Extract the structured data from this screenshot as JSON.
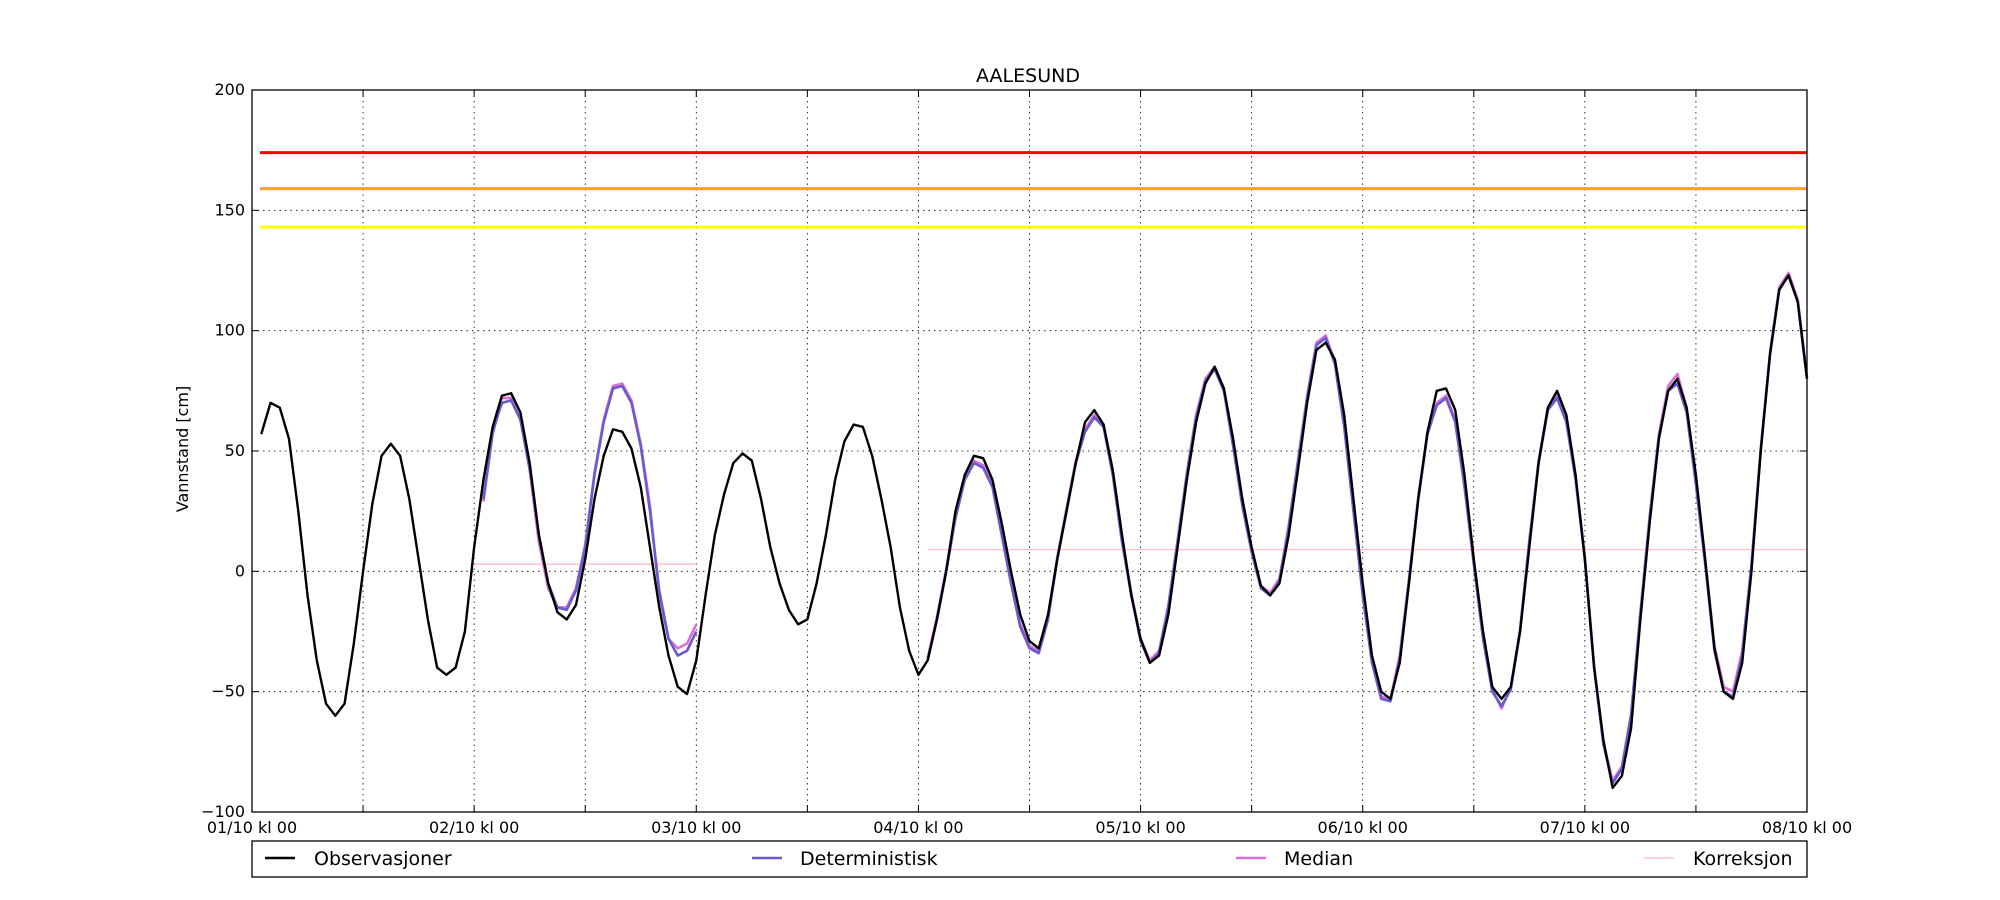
{
  "chart_data": {
    "type": "line",
    "title": "AALESUND",
    "xlabel": "",
    "ylabel": "Vannstand [cm]",
    "ylim": [
      -100,
      200
    ],
    "xlim_hours": [
      0,
      168
    ],
    "x_ticks": [
      "01/10 kl 00",
      "02/10 kl 00",
      "03/10 kl 00",
      "04/10 kl 00",
      "05/10 kl 00",
      "06/10 kl 00",
      "07/10 kl 00",
      "08/10 kl 00"
    ],
    "y_ticks": [
      -100,
      -50,
      0,
      50,
      100,
      150,
      200
    ],
    "grid": true,
    "grid_style": "dotted",
    "legend_position": "below",
    "threshold_lines": [
      {
        "value": 174,
        "color": "#ff0000"
      },
      {
        "value": 159,
        "color": "#ffa500"
      },
      {
        "value": 143,
        "color": "#ffff00"
      }
    ],
    "series": [
      {
        "name": "Observasjoner",
        "color": "#000000",
        "x": [
          1,
          2,
          3,
          4,
          5,
          6,
          7,
          8,
          9,
          10,
          11,
          12,
          13,
          14,
          15,
          16,
          17,
          18,
          19,
          20,
          21,
          22,
          23,
          24,
          25,
          26,
          27,
          28,
          29,
          30,
          31,
          32,
          33,
          34,
          35,
          36,
          37,
          38,
          39,
          40,
          41,
          42,
          43,
          44,
          45,
          46,
          47,
          48,
          49,
          50,
          51,
          52,
          53,
          54,
          55,
          56,
          57,
          58,
          59,
          60,
          61,
          62,
          63,
          64,
          65,
          66,
          67,
          68,
          69,
          70,
          71,
          72,
          73,
          74,
          75,
          76,
          77,
          78,
          79,
          80,
          81,
          82,
          83,
          84,
          85,
          86,
          87,
          88,
          89,
          90,
          91,
          92,
          93,
          94,
          95,
          96,
          97,
          98,
          99,
          100,
          101,
          102,
          103,
          104,
          105,
          106,
          107,
          108,
          109,
          110,
          111,
          112,
          113,
          114,
          115,
          116,
          117,
          118,
          119,
          120,
          121,
          122,
          123,
          124,
          125,
          126,
          127,
          128,
          129,
          130,
          131,
          132,
          133,
          134,
          135,
          136,
          137,
          138,
          139,
          140,
          141,
          142,
          143,
          144,
          145,
          146,
          147,
          148,
          149,
          150,
          151,
          152,
          153,
          154,
          155,
          156,
          157,
          158,
          159,
          160,
          161,
          162,
          163,
          164,
          165,
          166,
          167,
          168
        ],
        "values": [
          57,
          70,
          68,
          55,
          25,
          -10,
          -37,
          -55,
          -60,
          -55,
          -30,
          0,
          28,
          48,
          53,
          48,
          30,
          5,
          -20,
          -40,
          -43,
          -40,
          -25,
          10,
          38,
          60,
          73,
          74,
          66,
          45,
          15,
          -5,
          -17,
          -20,
          -14,
          5,
          30,
          48,
          59,
          58,
          51,
          35,
          10,
          -15,
          -35,
          -48,
          -51,
          -37,
          -10,
          15,
          32,
          45,
          49,
          46,
          30,
          10,
          -5,
          -16,
          -22,
          -20,
          -5,
          15,
          38,
          54,
          61,
          60,
          48,
          30,
          10,
          -15,
          -33,
          -43,
          -37,
          -20,
          0,
          25,
          40,
          48,
          47,
          38,
          20,
          0,
          -18,
          -29,
          -32,
          -18,
          5,
          25,
          45,
          62,
          67,
          61,
          42,
          15,
          -10,
          -28,
          -38,
          -35,
          -18,
          10,
          38,
          62,
          78,
          85,
          76,
          55,
          30,
          10,
          -6,
          -10,
          -5,
          15,
          42,
          70,
          92,
          95,
          88,
          65,
          30,
          -5,
          -35,
          -50,
          -53,
          -38,
          -5,
          30,
          58,
          75,
          76,
          67,
          40,
          5,
          -25,
          -48,
          -53,
          -48,
          -25,
          10,
          45,
          68,
          75,
          65,
          40,
          5,
          -40,
          -70,
          -90,
          -85,
          -65,
          -20,
          20,
          55,
          75,
          80,
          68,
          40,
          5,
          -32,
          -50,
          -53,
          -38,
          0,
          50,
          90,
          117,
          123,
          112,
          80
        ]
      },
      {
        "name": "Deterministisk",
        "color": "#6a5acd",
        "segments": [
          {
            "x": [
              25,
              26,
              27,
              28,
              29,
              30,
              31,
              32,
              33,
              34,
              35,
              36,
              37,
              38,
              39,
              40,
              41,
              42,
              43,
              44,
              45,
              46,
              47,
              48
            ],
            "values": [
              30,
              58,
              70,
              71,
              63,
              43,
              15,
              -5,
              -15,
              -16,
              -8,
              10,
              40,
              62,
              76,
              77,
              70,
              52,
              25,
              -8,
              -28,
              -35,
              -33,
              -25
            ]
          },
          {
            "x": [
              73,
              74,
              75,
              76,
              77,
              78,
              79,
              80,
              81,
              82,
              83,
              84,
              85,
              86,
              87,
              88,
              89,
              90,
              91,
              92,
              93,
              94,
              95,
              96,
              97,
              98,
              99,
              100,
              101,
              102,
              103,
              104,
              105,
              106,
              107,
              108,
              109,
              110,
              111,
              112,
              113,
              114,
              115,
              116,
              117,
              118,
              119,
              120,
              121,
              122,
              123,
              124,
              125,
              126,
              127,
              128,
              129,
              130,
              131,
              132,
              133,
              134,
              135,
              136,
              137,
              138,
              139,
              140,
              141,
              142,
              143,
              144,
              145,
              146,
              147,
              148,
              149,
              150,
              151,
              152,
              153,
              154,
              155,
              156,
              157,
              158,
              159,
              160,
              161,
              162,
              163,
              164,
              165,
              166,
              167,
              168
            ],
            "values": [
              -37,
              -20,
              0,
              22,
              38,
              45,
              43,
              35,
              15,
              -5,
              -23,
              -32,
              -34,
              -20,
              5,
              25,
              45,
              58,
              64,
              60,
              40,
              12,
              -10,
              -29,
              -38,
              -34,
              -15,
              12,
              40,
              64,
              79,
              84,
              75,
              52,
              27,
              8,
              -7,
              -10,
              -4,
              18,
              45,
              72,
              94,
              97,
              86,
              60,
              25,
              -10,
              -38,
              -53,
              -54,
              -36,
              -4,
              30,
              57,
              69,
              72,
              62,
              35,
              3,
              -28,
              -50,
              -56,
              -49,
              -25,
              12,
              45,
              67,
              72,
              62,
              38,
              5,
              -40,
              -72,
              -88,
              -82,
              -60,
              -18,
              22,
              56,
              75,
              78,
              66,
              36,
              3,
              -33,
              -50,
              -52,
              -35,
              2,
              50,
              90,
              117,
              123,
              112,
              80
            ]
          }
        ]
      },
      {
        "name": "Median",
        "color": "#da70d6",
        "segments": [
          {
            "x": [
              25,
              26,
              27,
              28,
              29,
              30,
              31,
              32,
              33,
              34,
              35,
              36,
              37,
              38,
              39,
              40,
              41,
              42,
              43,
              44,
              45,
              46,
              47,
              48
            ],
            "values": [
              29,
              57,
              72,
              72,
              63,
              42,
              12,
              -7,
              -15,
              -15,
              -7,
              11,
              41,
              63,
              77,
              78,
              71,
              53,
              27,
              -10,
              -28,
              -32,
              -30,
              -22
            ]
          },
          {
            "x": [
              73,
              74,
              75,
              76,
              77,
              78,
              79,
              80,
              81,
              82,
              83,
              84,
              85,
              86,
              87,
              88,
              89,
              90,
              91,
              92,
              93,
              94,
              95,
              96,
              97,
              98,
              99,
              100,
              101,
              102,
              103,
              104,
              105,
              106,
              107,
              108,
              109,
              110,
              111,
              112,
              113,
              114,
              115,
              116,
              117,
              118,
              119,
              120,
              121,
              122,
              123,
              124,
              125,
              126,
              127,
              128,
              129,
              130,
              131,
              132,
              133,
              134,
              135,
              136,
              137,
              138,
              139,
              140,
              141,
              142,
              143,
              144,
              145,
              146,
              147,
              148,
              149,
              150,
              151,
              152,
              153,
              154,
              155,
              156,
              157,
              158,
              159,
              160,
              161,
              162,
              163,
              164,
              165,
              166,
              167,
              168
            ],
            "values": [
              -36,
              -19,
              1,
              23,
              39,
              46,
              44,
              36,
              16,
              -4,
              -22,
              -31,
              -33,
              -19,
              6,
              26,
              46,
              59,
              65,
              61,
              41,
              13,
              -9,
              -28,
              -37,
              -33,
              -14,
              13,
              41,
              65,
              80,
              85,
              76,
              53,
              28,
              9,
              -6,
              -9,
              -3,
              19,
              46,
              73,
              95,
              98,
              87,
              61,
              26,
              -9,
              -37,
              -52,
              -53,
              -35,
              -3,
              31,
              58,
              70,
              73,
              63,
              36,
              4,
              -27,
              -49,
              -57,
              -48,
              -24,
              13,
              46,
              68,
              73,
              63,
              39,
              6,
              -39,
              -71,
              -87,
              -81,
              -59,
              -17,
              23,
              57,
              77,
              82,
              68,
              38,
              5,
              -31,
              -48,
              -50,
              -33,
              3,
              51,
              91,
              118,
              124,
              113,
              81
            ]
          }
        ]
      },
      {
        "name": "Korreksjon",
        "color": "#ffb6c1",
        "segments": [
          {
            "x": [
              24,
              48
            ],
            "values": [
              3,
              3
            ]
          },
          {
            "x": [
              73,
              168
            ],
            "values": [
              9,
              9
            ]
          }
        ]
      }
    ]
  }
}
